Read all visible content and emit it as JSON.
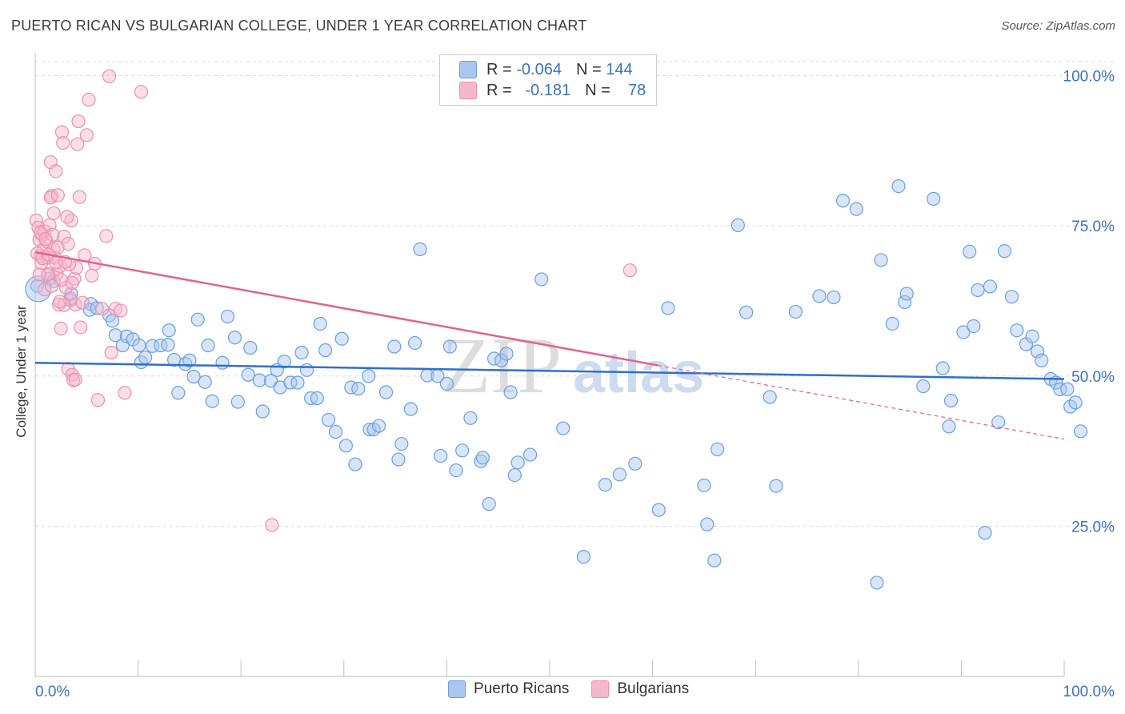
{
  "header": {
    "title": "PUERTO RICAN VS BULGARIAN COLLEGE, UNDER 1 YEAR CORRELATION CHART",
    "source": "Source: ZipAtlas.com"
  },
  "watermark": {
    "zip": "ZIP",
    "atlas": "atlas"
  },
  "legend": {
    "rows": [
      {
        "r_label": "R =",
        "r_value": "-0.064",
        "n_label": "N =",
        "n_value": "144",
        "color": "#a9c6ef"
      },
      {
        "r_label": "R =",
        "r_value": "-0.181",
        "n_label": "N =",
        "n_value": "78",
        "color": "#f5b8cb"
      }
    ]
  },
  "bottom_legend": [
    {
      "label": "Puerto Ricans",
      "color": "#a9c6ef"
    },
    {
      "label": "Bulgarians",
      "color": "#f5b8cb"
    }
  ],
  "chart_data": {
    "type": "scatter",
    "title": "PUERTO RICAN VS BULGARIAN COLLEGE, UNDER 1 YEAR CORRELATION CHART",
    "xlabel": "",
    "ylabel": "College, Under 1 year",
    "xlim": [
      0,
      100
    ],
    "ylim": [
      0,
      103
    ],
    "x_tick_labels": [
      "0.0%",
      "100.0%"
    ],
    "y_ticks": [
      25,
      50,
      75,
      100
    ],
    "y_tick_labels": [
      "25.0%",
      "50.0%",
      "75.0%",
      "100.0%"
    ],
    "grid": true,
    "colors": {
      "blue": "#6a9ee0",
      "blue_fill": "#a9c6ef",
      "blue_line": "#2f6fcd",
      "pink": "#ef8fae",
      "pink_fill": "#f5b8cb",
      "pink_line": "#e4628c",
      "tick_label": "#3b72c4"
    },
    "series": [
      {
        "name": "Puerto Ricans",
        "trend": {
          "x": [
            0,
            100
          ],
          "y": [
            52.2,
            49.5
          ],
          "solid_to": 100
        },
        "points": [
          [
            0.2,
            65
          ],
          [
            1.4,
            66.2
          ],
          [
            1.8,
            65.8
          ],
          [
            3.4,
            62.6
          ],
          [
            3.5,
            63.7
          ],
          [
            5.4,
            62
          ],
          [
            5.3,
            61
          ],
          [
            6,
            61.3
          ],
          [
            7.2,
            60.1
          ],
          [
            7.5,
            59.2
          ],
          [
            7.8,
            56.8
          ],
          [
            8.5,
            55.1
          ],
          [
            8.9,
            56.6
          ],
          [
            9.5,
            56.1
          ],
          [
            10.1,
            55.1
          ],
          [
            10.3,
            52.3
          ],
          [
            10.7,
            53.1
          ],
          [
            11.4,
            55
          ],
          [
            12.2,
            55.1
          ],
          [
            12.9,
            55.2
          ],
          [
            13,
            57.6
          ],
          [
            13.5,
            52.7
          ],
          [
            13.9,
            47.2
          ],
          [
            14.6,
            52
          ],
          [
            15,
            52.6
          ],
          [
            15.4,
            49.9
          ],
          [
            15.8,
            59.4
          ],
          [
            16.5,
            49
          ],
          [
            16.8,
            55.1
          ],
          [
            17.2,
            45.8
          ],
          [
            18.2,
            52.2
          ],
          [
            18.7,
            59.9
          ],
          [
            19.4,
            56.4
          ],
          [
            19.7,
            45.7
          ],
          [
            20.7,
            50.2
          ],
          [
            20.9,
            54.7
          ],
          [
            21.8,
            49.3
          ],
          [
            22.1,
            44.1
          ],
          [
            22.9,
            49.2
          ],
          [
            23.5,
            51
          ],
          [
            23.8,
            48.1
          ],
          [
            24.2,
            52.4
          ],
          [
            24.8,
            48.9
          ],
          [
            25.5,
            48.9
          ],
          [
            25.9,
            53.9
          ],
          [
            26.4,
            51
          ],
          [
            26.8,
            46.3
          ],
          [
            27.4,
            46.3
          ],
          [
            27.7,
            58.7
          ],
          [
            28.2,
            54.3
          ],
          [
            28.5,
            42.7
          ],
          [
            29.2,
            40.7
          ],
          [
            29.8,
            56.2
          ],
          [
            30.2,
            38.4
          ],
          [
            30.7,
            48.1
          ],
          [
            31.1,
            35.3
          ],
          [
            31.4,
            47.9
          ],
          [
            32.4,
            50
          ],
          [
            32.5,
            41.1
          ],
          [
            32.9,
            41.1
          ],
          [
            33.4,
            41.7
          ],
          [
            34.1,
            47.3
          ],
          [
            34.9,
            54.9
          ],
          [
            35.3,
            36.1
          ],
          [
            35.6,
            38.7
          ],
          [
            36.5,
            44.5
          ],
          [
            36.9,
            55.5
          ],
          [
            37.4,
            71.1
          ],
          [
            38.1,
            50.1
          ],
          [
            39.1,
            50
          ],
          [
            39.4,
            36.7
          ],
          [
            40,
            48.7
          ],
          [
            40.3,
            54.9
          ],
          [
            40.9,
            34.3
          ],
          [
            41.5,
            37.6
          ],
          [
            42.3,
            43
          ],
          [
            43.3,
            35.8
          ],
          [
            43.5,
            36.4
          ],
          [
            44.1,
            28.7
          ],
          [
            44.6,
            52.9
          ],
          [
            45.3,
            52.6
          ],
          [
            45.8,
            53.7
          ],
          [
            46.2,
            47.3
          ],
          [
            46.6,
            33.5
          ],
          [
            46.9,
            35.6
          ],
          [
            48.1,
            36.9
          ],
          [
            49.2,
            66.1
          ],
          [
            51.3,
            41.3
          ],
          [
            53.3,
            19.9
          ],
          [
            55.4,
            31.9
          ],
          [
            56.8,
            33.6
          ],
          [
            58.3,
            35.4
          ],
          [
            60.6,
            27.7
          ],
          [
            61.5,
            61.3
          ],
          [
            65,
            31.8
          ],
          [
            65.3,
            25.3
          ],
          [
            66,
            19.3
          ],
          [
            66.3,
            37.8
          ],
          [
            68.3,
            75.1
          ],
          [
            69.1,
            60.6
          ],
          [
            71.4,
            46.5
          ],
          [
            72,
            31.7
          ],
          [
            73.9,
            60.7
          ],
          [
            76.2,
            63.3
          ],
          [
            77.6,
            63.1
          ],
          [
            78.5,
            79.2
          ],
          [
            79.8,
            77.8
          ],
          [
            81.8,
            15.6
          ],
          [
            82.2,
            69.3
          ],
          [
            83.3,
            58.7
          ],
          [
            83.9,
            81.6
          ],
          [
            84.5,
            62.3
          ],
          [
            84.7,
            63.7
          ],
          [
            86.3,
            48.3
          ],
          [
            87.3,
            79.5
          ],
          [
            88.2,
            51.3
          ],
          [
            88.8,
            41.6
          ],
          [
            89,
            45.9
          ],
          [
            90.2,
            57.3
          ],
          [
            90.8,
            70.7
          ],
          [
            91.2,
            58.3
          ],
          [
            91.6,
            64.3
          ],
          [
            92.3,
            23.9
          ],
          [
            92.8,
            64.9
          ],
          [
            93.6,
            42.3
          ],
          [
            94.2,
            70.8
          ],
          [
            94.9,
            63.2
          ],
          [
            95.4,
            57.6
          ],
          [
            96.3,
            55.3
          ],
          [
            96.9,
            56.6
          ],
          [
            97.4,
            54.1
          ],
          [
            97.8,
            52.6
          ],
          [
            98.7,
            49.5
          ],
          [
            99.2,
            48.9
          ],
          [
            99.6,
            47.8
          ],
          [
            100.3,
            47.8
          ],
          [
            100.6,
            44.9
          ],
          [
            101.1,
            45.6
          ],
          [
            101.6,
            40.8
          ]
        ]
      },
      {
        "name": "Bulgarians",
        "trend": {
          "x": [
            0,
            100
          ],
          "y": [
            70.6,
            39.5
          ],
          "solid_to": 60.5
        },
        "points": [
          [
            0.1,
            75.9
          ],
          [
            0.3,
            74.7
          ],
          [
            0.4,
            72.7
          ],
          [
            0.5,
            70
          ],
          [
            0.6,
            68.8
          ],
          [
            0.7,
            73.5
          ],
          [
            0.8,
            71.1
          ],
          [
            0.9,
            74.1
          ],
          [
            1.1,
            72.4
          ],
          [
            1.2,
            69.7
          ],
          [
            1.3,
            67
          ],
          [
            1.4,
            75.1
          ],
          [
            1.5,
            85.6
          ],
          [
            1.6,
            80
          ],
          [
            1.7,
            73.5
          ],
          [
            1.8,
            71.1
          ],
          [
            1.9,
            69.7
          ],
          [
            2,
            84.1
          ],
          [
            2.1,
            67
          ],
          [
            2.2,
            71.4
          ],
          [
            2.3,
            61.9
          ],
          [
            2.4,
            68.3
          ],
          [
            2.5,
            57.9
          ],
          [
            2.6,
            90.6
          ],
          [
            2.7,
            88.8
          ],
          [
            2.8,
            73.2
          ],
          [
            3,
            64.7
          ],
          [
            3.2,
            51.2
          ],
          [
            3.4,
            62.9
          ],
          [
            3.5,
            75.9
          ],
          [
            3.6,
            50.2
          ],
          [
            3.7,
            49.3
          ],
          [
            3.8,
            66.2
          ],
          [
            3.9,
            61.9
          ],
          [
            4,
            68
          ],
          [
            4.1,
            88.6
          ],
          [
            4.2,
            92.4
          ],
          [
            4.3,
            79.8
          ],
          [
            4.4,
            58.1
          ],
          [
            4.6,
            62.2
          ],
          [
            4.8,
            70.1
          ],
          [
            5,
            90.1
          ],
          [
            5.2,
            96
          ],
          [
            5.5,
            66.7
          ],
          [
            5.8,
            68.7
          ],
          [
            6.1,
            46
          ],
          [
            6.5,
            61.2
          ],
          [
            6.9,
            73.3
          ],
          [
            7.2,
            99.9
          ],
          [
            7.4,
            53.9
          ],
          [
            7.8,
            61.2
          ],
          [
            8.3,
            60.9
          ],
          [
            8.7,
            47.2
          ],
          [
            10.3,
            97.3
          ],
          [
            23,
            25.2
          ],
          [
            57.8,
            67.6
          ],
          [
            0.2,
            70.4
          ],
          [
            0.5,
            73.8
          ],
          [
            0.9,
            64.4
          ],
          [
            1.2,
            66.8
          ],
          [
            1.5,
            79.7
          ],
          [
            1.8,
            77.1
          ],
          [
            2.2,
            80.1
          ],
          [
            2.5,
            66
          ],
          [
            2.8,
            61.8
          ],
          [
            3.1,
            76.5
          ],
          [
            3.3,
            68.6
          ],
          [
            3.6,
            65.5
          ],
          [
            3.9,
            49.4
          ],
          [
            0.4,
            66.9
          ],
          [
            0.7,
            69.6
          ],
          [
            1,
            72.8
          ],
          [
            1.3,
            70.2
          ],
          [
            1.6,
            65
          ],
          [
            2,
            68.9
          ],
          [
            2.4,
            62.4
          ],
          [
            2.9,
            69
          ],
          [
            3.2,
            72
          ]
        ]
      }
    ]
  }
}
